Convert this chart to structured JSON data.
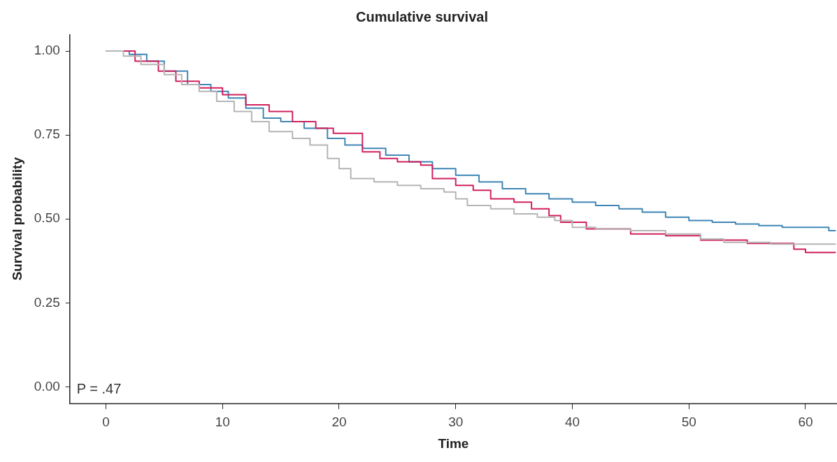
{
  "chart_data": {
    "type": "step",
    "title": "Cumulative survival",
    "xlabel": "Time",
    "ylabel": "Survival probability",
    "annotations": [
      "P = .47"
    ],
    "xlim": [
      -3.1,
      62.7
    ],
    "xticks": [
      0,
      10,
      20,
      30,
      40,
      50,
      60
    ],
    "ylim": [
      -0.05,
      1.05
    ],
    "yticks": [
      {
        "value": 0,
        "label": "0.00"
      },
      {
        "value": 0.25,
        "label": "0.25"
      },
      {
        "value": 0.5,
        "label": "0.50"
      },
      {
        "value": 0.75,
        "label": "0.75"
      },
      {
        "value": 1,
        "label": "1.00"
      }
    ],
    "grid": false,
    "legend": false,
    "marker": "none",
    "line_style": "solid",
    "series": [
      {
        "color": "#b5b5b5",
        "x": [
          0,
          1.5,
          3,
          5,
          6.5,
          8,
          9.5,
          11,
          12.5,
          14,
          16,
          17.5,
          19,
          20,
          21,
          23,
          25,
          27,
          29,
          30,
          31,
          33,
          35,
          37,
          38.5,
          40,
          42,
          45,
          48,
          51,
          53,
          57,
          62.6
        ],
        "values": [
          1,
          0.985,
          0.96,
          0.93,
          0.9,
          0.88,
          0.85,
          0.82,
          0.79,
          0.76,
          0.74,
          0.72,
          0.68,
          0.65,
          0.62,
          0.61,
          0.6,
          0.59,
          0.58,
          0.56,
          0.54,
          0.53,
          0.515,
          0.505,
          0.495,
          0.475,
          0.47,
          0.465,
          0.455,
          0.44,
          0.43,
          0.425,
          0.425
        ]
      },
      {
        "color": "#d0215e",
        "x": [
          0,
          2.5,
          4.5,
          6,
          8,
          10,
          12,
          14,
          16,
          18,
          19.5,
          22,
          23.5,
          25,
          27,
          28,
          30,
          31.5,
          33,
          35,
          36.5,
          38,
          39,
          41.2,
          45,
          48,
          51,
          55,
          59,
          60,
          62.6
        ],
        "values": [
          1,
          0.97,
          0.94,
          0.91,
          0.89,
          0.87,
          0.84,
          0.82,
          0.79,
          0.77,
          0.755,
          0.7,
          0.68,
          0.67,
          0.66,
          0.62,
          0.6,
          0.585,
          0.56,
          0.55,
          0.53,
          0.51,
          0.49,
          0.47,
          0.455,
          0.45,
          0.437,
          0.427,
          0.41,
          0.4,
          0.4
        ]
      },
      {
        "color": "#3f86b6",
        "x": [
          0,
          2,
          3.5,
          5,
          7,
          9,
          10.5,
          12,
          13.5,
          15,
          17,
          19,
          20.5,
          22,
          24,
          26,
          28,
          30,
          32,
          34,
          36,
          38,
          40,
          42,
          44,
          46,
          48,
          50,
          52,
          54,
          56,
          58,
          62,
          62.6
        ],
        "values": [
          1,
          0.99,
          0.97,
          0.94,
          0.9,
          0.88,
          0.86,
          0.83,
          0.8,
          0.79,
          0.77,
          0.74,
          0.72,
          0.71,
          0.69,
          0.67,
          0.65,
          0.63,
          0.61,
          0.59,
          0.575,
          0.56,
          0.55,
          0.54,
          0.53,
          0.52,
          0.505,
          0.495,
          0.49,
          0.485,
          0.48,
          0.475,
          0.465,
          0.465
        ]
      }
    ]
  }
}
